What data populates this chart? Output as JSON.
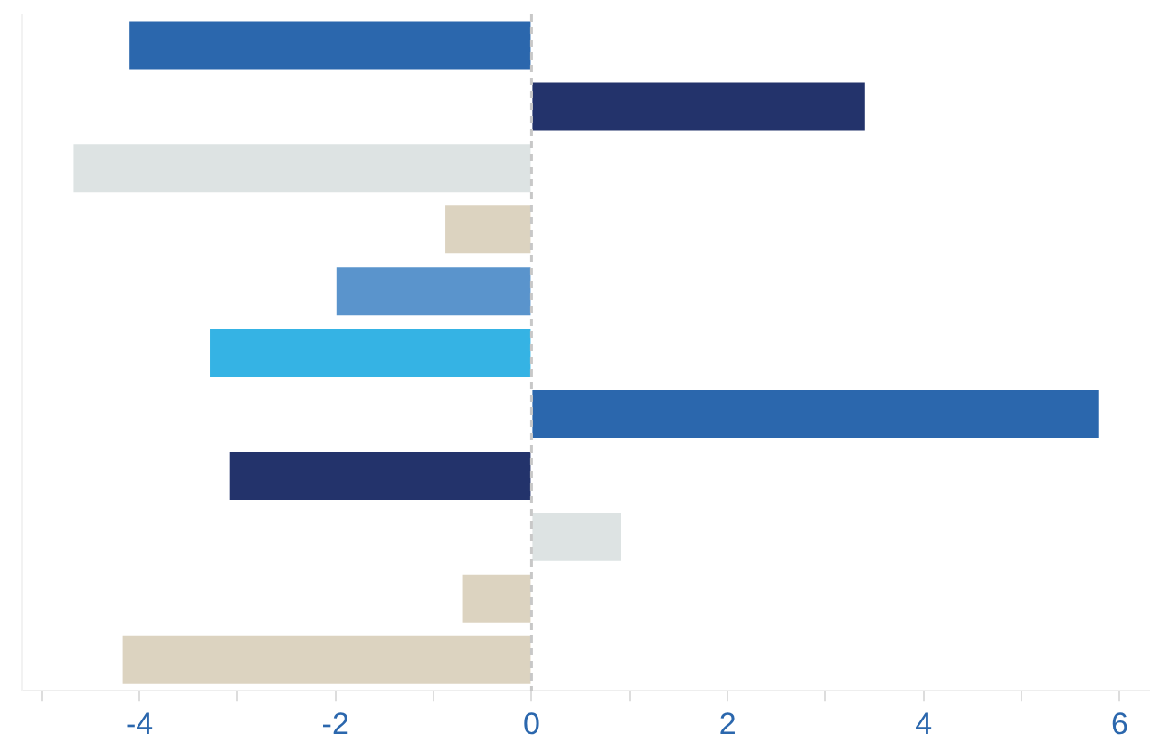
{
  "chart_data": {
    "type": "bar",
    "orientation": "horizontal",
    "categories": [
      null,
      null,
      null,
      null,
      null,
      null,
      null,
      null,
      null,
      null,
      null
    ],
    "values": [
      -4.1,
      3.4,
      -4.67,
      -0.88,
      -1.99,
      -3.28,
      5.79,
      -3.08,
      0.91,
      -0.7,
      -4.17
    ],
    "colors": [
      "#2b67ad",
      "#23336b",
      "#dde3e3",
      "#dcd3c0",
      "#5a94cc",
      "#35b3e4",
      "#2b67ad",
      "#23336b",
      "#dde3e3",
      "#dcd3c0",
      "#dcd3c0"
    ],
    "xlim": [
      -5.2,
      6.3
    ],
    "xticks": [
      {
        "value": -5,
        "label": null
      },
      -4,
      {
        "value": -3,
        "label": null
      },
      -2,
      {
        "value": -1,
        "label": null
      },
      0,
      {
        "value": 1,
        "label": null
      },
      2,
      {
        "value": 3,
        "label": null
      },
      4,
      {
        "value": 5,
        "label": null
      },
      6
    ],
    "ref_lines": [
      {
        "axis": "x",
        "value": 0,
        "color": "#c8c8c8",
        "line_style": "dashed"
      }
    ],
    "grid": false,
    "legend": false
  }
}
